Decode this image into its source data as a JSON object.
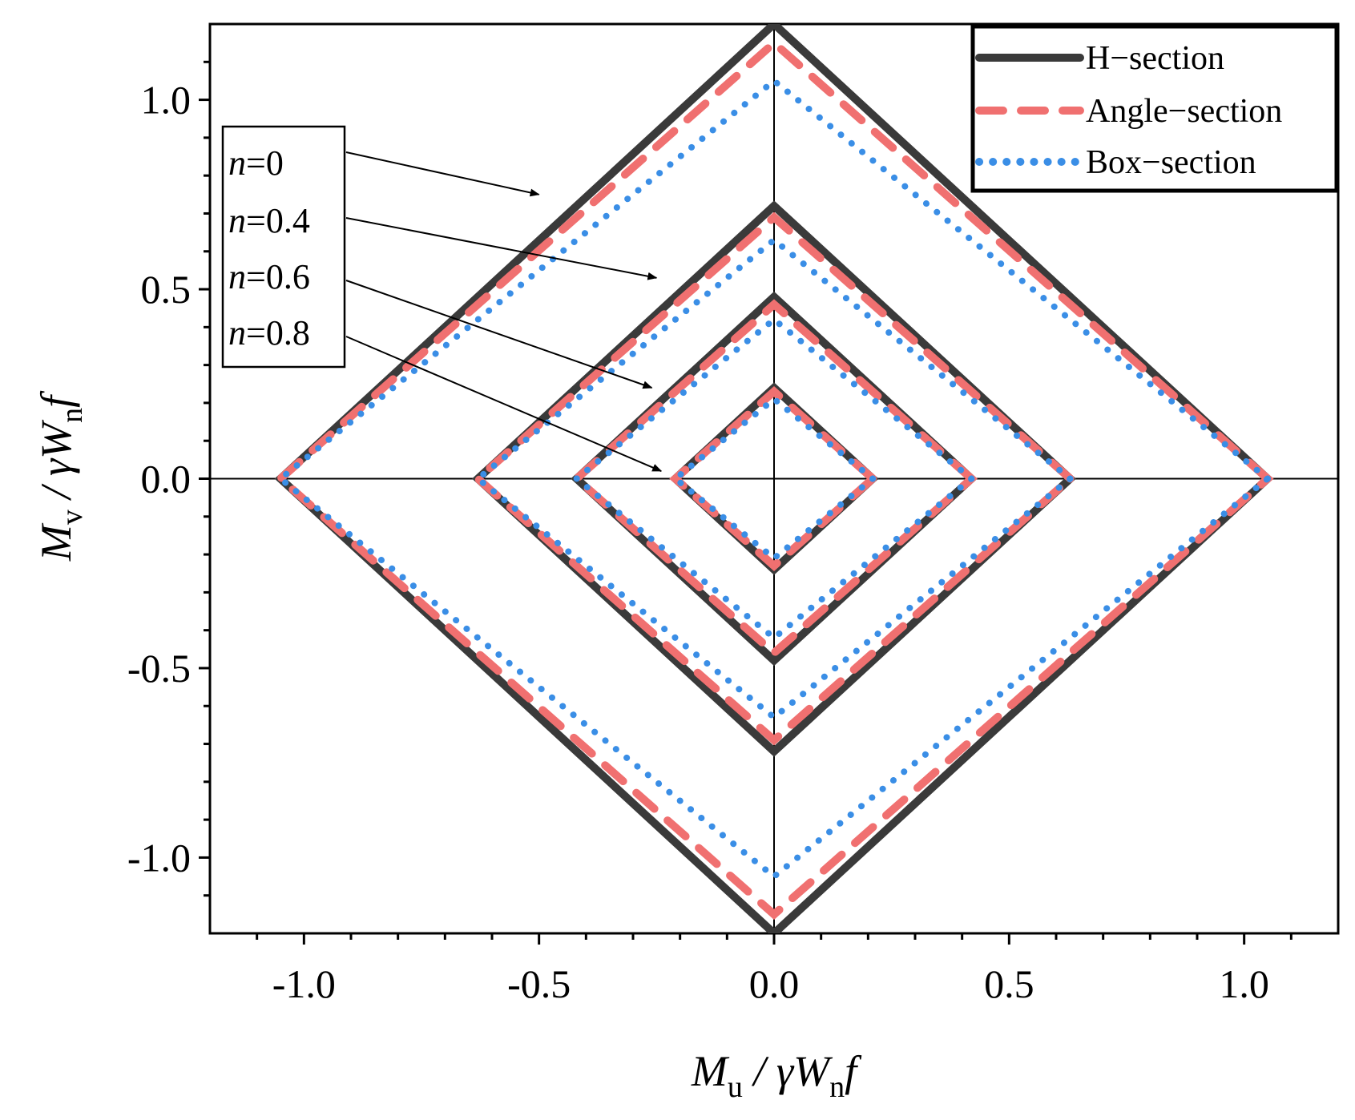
{
  "chart_data": {
    "type": "line",
    "title": "",
    "xlabel": {
      "main": "M",
      "sub": "u",
      "rest": " / γW",
      "sub2": "n",
      "tail": "f"
    },
    "ylabel": {
      "main": "M",
      "sub": "v",
      "rest": " / γW",
      "sub2": "n",
      "tail": "f"
    },
    "xlim": [
      -1.2,
      1.2
    ],
    "ylim": [
      -1.2,
      1.2
    ],
    "xticks": [
      -1.0,
      -0.5,
      0.0,
      0.5,
      1.0
    ],
    "yticks": [
      -1.0,
      -0.5,
      0.0,
      0.5,
      1.0
    ],
    "xtick_labels": [
      "-1.0",
      "-0.5",
      "0.0",
      "0.5",
      "1.0"
    ],
    "ytick_labels": [
      "-1.0",
      "-0.5",
      "0.0",
      "0.5",
      "1.0"
    ],
    "legend_position": "top-right",
    "series": [
      {
        "name": "H−section",
        "style": "solid",
        "color": "#3a3a3a",
        "curves": [
          {
            "n": 0,
            "u_max": 1.05,
            "v_max": 1.2
          },
          {
            "n": 0.4,
            "u_max": 0.63,
            "v_max": 0.72
          },
          {
            "n": 0.6,
            "u_max": 0.42,
            "v_max": 0.48
          },
          {
            "n": 0.8,
            "u_max": 0.21,
            "v_max": 0.24
          }
        ]
      },
      {
        "name": "Angle−section",
        "style": "dashed",
        "color": "#f07070",
        "curves": [
          {
            "n": 0,
            "u_max": 1.05,
            "v_max": 1.15
          },
          {
            "n": 0.4,
            "u_max": 0.63,
            "v_max": 0.69
          },
          {
            "n": 0.6,
            "u_max": 0.42,
            "v_max": 0.46
          },
          {
            "n": 0.8,
            "u_max": 0.21,
            "v_max": 0.23
          }
        ]
      },
      {
        "name": "Box−section",
        "style": "dotted",
        "color": "#3a8ee6",
        "curves": [
          {
            "n": 0,
            "u_max": 1.05,
            "v_max": 1.05
          },
          {
            "n": 0.4,
            "u_max": 0.63,
            "v_max": 0.63
          },
          {
            "n": 0.6,
            "u_max": 0.42,
            "v_max": 0.42
          },
          {
            "n": 0.8,
            "u_max": 0.21,
            "v_max": 0.21
          }
        ]
      }
    ],
    "annotations": [
      {
        "label_prefix": "n",
        "label_value": "=0",
        "target": [
          -0.5,
          0.75
        ]
      },
      {
        "label_prefix": "n",
        "label_value": "=0.4",
        "target": [
          -0.25,
          0.53
        ]
      },
      {
        "label_prefix": "n",
        "label_value": "=0.6",
        "target": [
          -0.26,
          0.24
        ]
      },
      {
        "label_prefix": "n",
        "label_value": "=0.8",
        "target": [
          -0.24,
          0.02
        ]
      }
    ]
  }
}
